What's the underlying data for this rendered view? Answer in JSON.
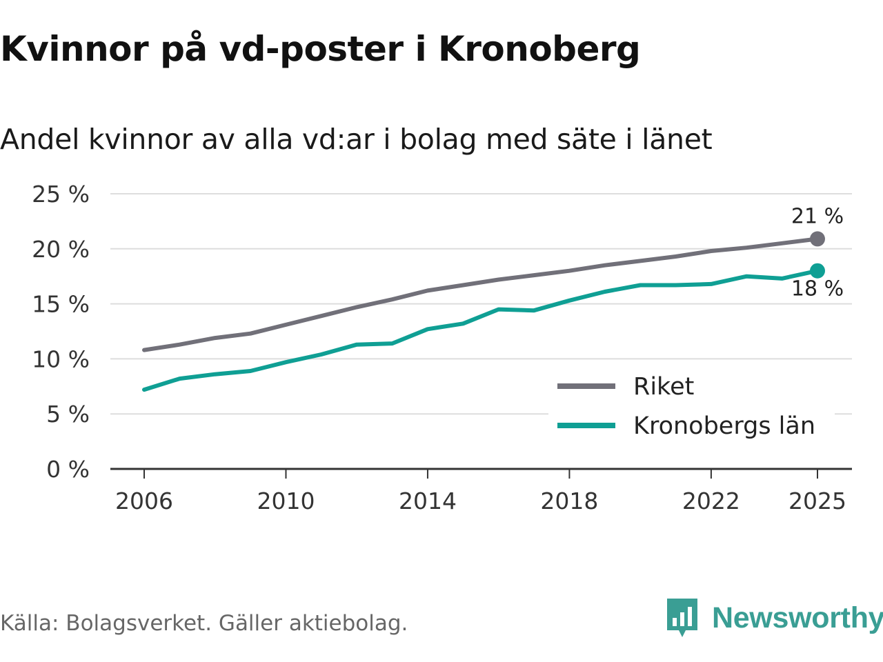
{
  "title": "Kvinnor på vd-poster i Kronoberg",
  "subtitle": "Andel kvinnor av alla vd:ar i bolag med säte i länet",
  "source": "Källa: Bolagsverket. Gäller aktiebolag.",
  "brand": "Newsworthy",
  "colors": {
    "riket": "#717079",
    "kronoberg": "#0f9f94",
    "grid": "#dddddd",
    "axis": "#333333",
    "brand": "#3a9e94"
  },
  "chart_data": {
    "type": "line",
    "title": "Kvinnor på vd-poster i Kronoberg",
    "subtitle": "Andel kvinnor av alla vd:ar i bolag med säte i länet",
    "xlabel": "",
    "ylabel": "",
    "x": [
      2006,
      2007,
      2008,
      2009,
      2010,
      2011,
      2012,
      2013,
      2014,
      2015,
      2016,
      2017,
      2018,
      2019,
      2020,
      2021,
      2022,
      2023,
      2024,
      2025
    ],
    "xticks": [
      2006,
      2010,
      2014,
      2018,
      2022,
      2025
    ],
    "xtick_labels": [
      "2006",
      "2010",
      "2014",
      "2018",
      "2022",
      "2025"
    ],
    "ylim": [
      0,
      25
    ],
    "yticks": [
      0,
      5,
      10,
      15,
      20,
      25
    ],
    "ytick_labels": [
      "0 %",
      "5 %",
      "10 %",
      "15 %",
      "20 %",
      "25 %"
    ],
    "grid": true,
    "legend_position": "bottom-right",
    "series": [
      {
        "name": "Riket",
        "color": "#717079",
        "end_label": "21 %",
        "values": [
          10.8,
          11.3,
          11.9,
          12.3,
          13.1,
          13.9,
          14.7,
          15.4,
          16.2,
          16.7,
          17.2,
          17.6,
          18.0,
          18.5,
          18.9,
          19.3,
          19.8,
          20.1,
          20.5,
          20.9
        ]
      },
      {
        "name": "Kronobergs län",
        "color": "#0f9f94",
        "end_label": "18 %",
        "values": [
          7.2,
          8.2,
          8.6,
          8.9,
          9.7,
          10.4,
          11.3,
          11.4,
          12.7,
          13.2,
          14.5,
          14.4,
          15.3,
          16.1,
          16.7,
          16.7,
          16.8,
          17.5,
          17.3,
          18.0
        ]
      }
    ]
  }
}
